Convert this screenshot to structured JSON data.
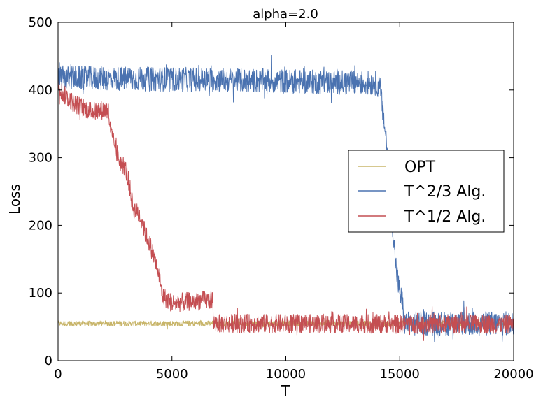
{
  "chart_data": {
    "type": "line",
    "title": "alpha=2.0",
    "xlabel": "T",
    "ylabel": "Loss",
    "xlim": [
      0,
      20000
    ],
    "ylim": [
      0,
      500
    ],
    "xticks": [
      0,
      5000,
      10000,
      15000,
      20000
    ],
    "xtick_labels": [
      "0",
      "5000",
      "10000",
      "15000",
      "20000"
    ],
    "yticks": [
      0,
      100,
      200,
      300,
      400,
      500
    ],
    "ytick_labels": [
      "0",
      "100",
      "200",
      "300",
      "400",
      "500"
    ],
    "legend_position": "center-right",
    "series": [
      {
        "name": "OPT",
        "color": "#c8b56a",
        "noise": 4,
        "points": [
          [
            0,
            55
          ],
          [
            20000,
            55
          ]
        ]
      },
      {
        "name": "T^2/3 Alg.",
        "color": "#4a72b0",
        "noise": 18,
        "points": [
          [
            0,
            418
          ],
          [
            7000,
            415
          ],
          [
            14000,
            410
          ],
          [
            14150,
            400
          ],
          [
            14250,
            370
          ],
          [
            14400,
            330
          ],
          [
            14600,
            240
          ],
          [
            14800,
            150
          ],
          [
            14950,
            110
          ],
          [
            15050,
            95
          ],
          [
            15150,
            80
          ],
          [
            15200,
            55
          ],
          [
            20000,
            55
          ]
        ]
      },
      {
        "name": "T^1/2 Alg.",
        "color": "#c44e52",
        "noise": 14,
        "points": [
          [
            0,
            410
          ],
          [
            200,
            395
          ],
          [
            700,
            380
          ],
          [
            1500,
            368
          ],
          [
            2200,
            372
          ],
          [
            2300,
            340
          ],
          [
            2500,
            315
          ],
          [
            2700,
            295
          ],
          [
            2950,
            285
          ],
          [
            3100,
            265
          ],
          [
            3300,
            225
          ],
          [
            3700,
            210
          ],
          [
            3800,
            190
          ],
          [
            4000,
            175
          ],
          [
            4200,
            155
          ],
          [
            4400,
            130
          ],
          [
            4600,
            95
          ],
          [
            5000,
            85
          ],
          [
            6000,
            88
          ],
          [
            6800,
            90
          ],
          [
            6800,
            55
          ],
          [
            20000,
            54
          ]
        ]
      }
    ]
  }
}
